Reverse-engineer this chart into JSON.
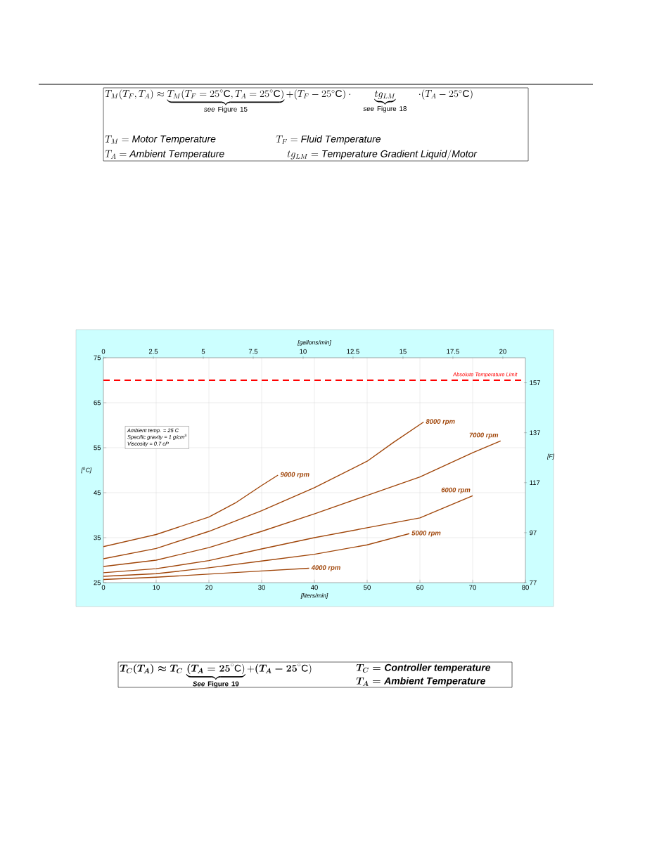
{
  "chart_data": {
    "type": "line",
    "xlabel": "[liters/min]",
    "ylabel": "[$^{0}$C]",
    "x2label": "[gallons/min]",
    "y2label": "[F]",
    "xlim": [
      0,
      80
    ],
    "xticks": [
      0,
      10,
      20,
      30,
      40,
      50,
      60,
      70,
      80
    ],
    "ylim": [
      25,
      75
    ],
    "yticks": [
      25,
      35,
      45,
      55,
      65,
      75
    ],
    "x2lim": [
      0,
      21.13
    ],
    "x2ticks": [
      0,
      2.5,
      5,
      7.5,
      10,
      12.5,
      15,
      17.5,
      20
    ],
    "y2lim": [
      77,
      167
    ],
    "y2ticks": [
      77,
      97,
      117,
      137,
      157
    ],
    "grid": true,
    "series": [
      {
        "name": "4000 rpm",
        "color": "#a0460a",
        "x": [
          0,
          10,
          20,
          30,
          39
        ],
        "values": [
          25.7,
          26.2,
          26.9,
          27.6,
          28.2
        ]
      },
      {
        "name": "5000 rpm",
        "color": "#a0460a",
        "x": [
          0,
          10,
          20,
          30,
          40,
          50,
          58
        ],
        "values": [
          26.4,
          27.0,
          28.3,
          29.8,
          31.3,
          33.4,
          35.9
        ]
      },
      {
        "name": "6000 rpm",
        "color": "#a0460a",
        "x": [
          0,
          10,
          20,
          30,
          40,
          50,
          60,
          70
        ],
        "values": [
          27.2,
          28.1,
          29.9,
          32.5,
          35.0,
          37.2,
          39.4,
          44.3
        ]
      },
      {
        "name": "7000 rpm",
        "color": "#a0460a",
        "x": [
          0,
          10,
          20,
          30,
          40,
          50,
          60,
          70,
          75.3
        ],
        "values": [
          28.6,
          30.0,
          32.8,
          36.4,
          40.3,
          44.4,
          48.5,
          53.9,
          56.5
        ]
      },
      {
        "name": "8000 rpm",
        "color": "#a0460a",
        "x": [
          0,
          10,
          20,
          30,
          40,
          50,
          55,
          60.7
        ],
        "values": [
          30.3,
          32.6,
          36.4,
          41.0,
          46.1,
          52.0,
          56.2,
          60.7
        ]
      },
      {
        "name": "9000 rpm",
        "color": "#a0460a",
        "x": [
          0,
          10,
          20,
          25,
          30,
          33.1
        ],
        "values": [
          33.0,
          35.7,
          39.6,
          42.7,
          46.6,
          48.9
        ]
      }
    ],
    "ref_lines": [
      {
        "axis": "y",
        "value": 70,
        "label": "Absolute Temperature Limit",
        "color": "#ff0000",
        "line_style": "dashed"
      }
    ],
    "annotations": [
      "T_M(T_F,T_A) \\approx \\underbrace{T_M(T_F = 25^\\circ\\mathrm{C}, T_A = 25^\\circ\\mathrm{C})}_{\\mathit{see}\\ \\mathrm{Figure\\ 15}} + (T_F - 25^\\circ\\mathrm{C}) \\cdot \\quad \\underbrace{tg_{LM}}_{\\mathit{see}\\ \\mathrm{Figure\\ 18}} \\quad \\cdot (T_A - 25^\\circ\\mathrm{C})",
      "T_M = \\mathit{Motor\\ Temperature}",
      "T_F = \\mathit{Fluid\\ Temperature}",
      "T_A = \\mathit{Ambient\\ Temperature}",
      "tg_{LM} = \\mathit{Temperature\\ Gradient\\ Liquid/Motor}",
      "\\boldsymbol{T_C(T_A) \\approx T_C\\,}\\underbrace{\\boldsymbol{(T_A = 25}^\\circ\\mathrm{C})}_{\\boldsymbol{\\mathit{See}}\\ \\mathbf{Figure\\ 19}} + \\boldsymbol{(T_A - 25}^\\circ\\mathrm{C})",
      "\\boldsymbol{T_C = \\mathit{Controller\\ temperature}}",
      "\\boldsymbol{T_A = \\mathit{Ambient\\ Temperature}}",
      "Ambient temp. = 25 C",
      "Specific gravity = 1 g/cm$^{3}$",
      "Viscosity = 0.7 cP"
    ]
  }
}
